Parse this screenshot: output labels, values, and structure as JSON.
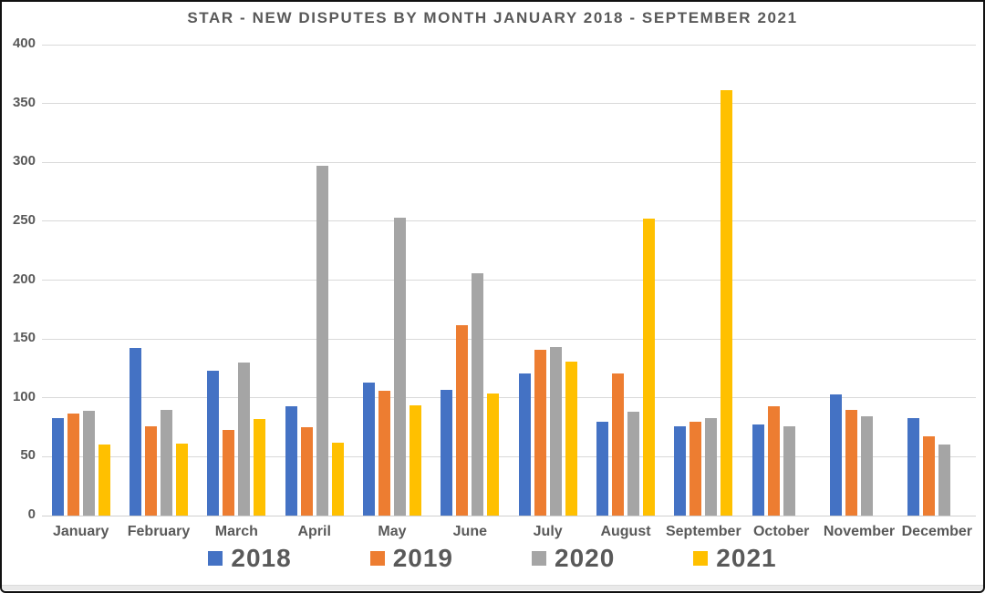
{
  "chart_data": {
    "type": "bar",
    "title": "STAR - NEW DISPUTES BY MONTH JANUARY 2018 - SEPTEMBER 2021",
    "categories": [
      "January",
      "February",
      "March",
      "April",
      "May",
      "June",
      "July",
      "August",
      "September",
      "October",
      "November",
      "December"
    ],
    "series": [
      {
        "name": "2018",
        "color": "#4472C4",
        "values": [
          83,
          142,
          123,
          93,
          113,
          107,
          121,
          80,
          76,
          77,
          103,
          83
        ]
      },
      {
        "name": "2019",
        "color": "#ED7D31",
        "values": [
          87,
          76,
          73,
          75,
          106,
          162,
          141,
          121,
          80,
          93,
          90,
          67
        ]
      },
      {
        "name": "2020",
        "color": "#A5A5A5",
        "values": [
          89,
          90,
          130,
          297,
          253,
          206,
          143,
          88,
          83,
          76,
          84,
          60
        ]
      },
      {
        "name": "2021",
        "color": "#FFC000",
        "values": [
          60,
          61,
          82,
          62,
          94,
          104,
          131,
          252,
          361,
          null,
          null,
          null
        ]
      }
    ],
    "xlabel": "",
    "ylabel": "",
    "ylim": [
      0,
      400
    ],
    "yticks": [
      0,
      50,
      100,
      150,
      200,
      250,
      300,
      350,
      400
    ],
    "grid": true,
    "legend_position": "bottom"
  },
  "colors": {
    "text": "#595959",
    "gridline": "#d9d9d9",
    "background": "#ffffff"
  }
}
